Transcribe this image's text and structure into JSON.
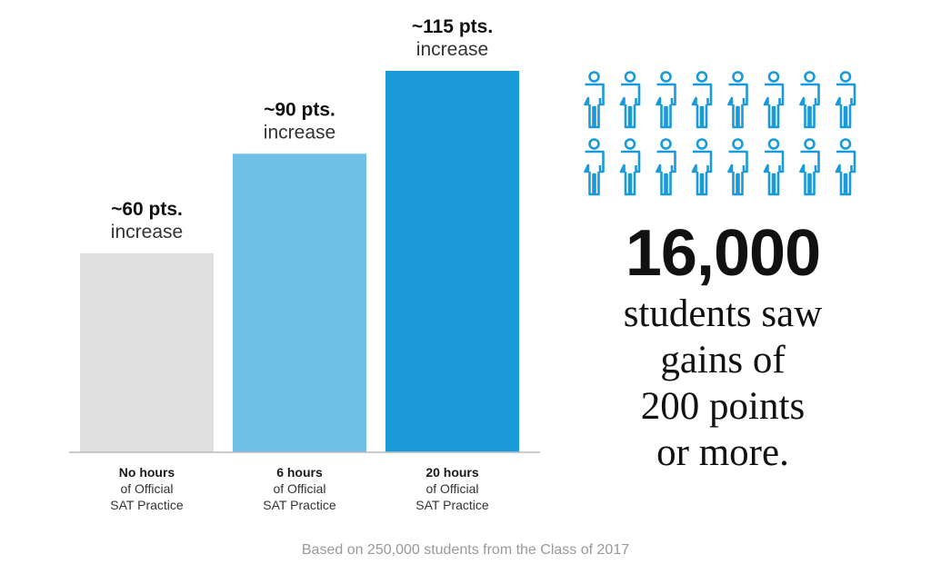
{
  "chart_data": {
    "type": "bar",
    "categories": [
      {
        "bold": "No hours",
        "line2": "of Official",
        "line3": "SAT Practice"
      },
      {
        "bold": "6 hours",
        "line2": "of Official",
        "line3": "SAT Practice"
      },
      {
        "bold": "20 hours",
        "line2": "of Official",
        "line3": "SAT Practice"
      }
    ],
    "values": [
      60,
      90,
      115
    ],
    "data_labels": [
      {
        "bold": "~60 pts.",
        "light": "increase"
      },
      {
        "bold": "~90 pts.",
        "light": "increase"
      },
      {
        "bold": "~115 pts.",
        "light": "increase"
      }
    ],
    "colors": [
      "#e0e0e0",
      "#6fbfe6",
      "#1a9ad8"
    ],
    "ylim": [
      0,
      115
    ],
    "title": "",
    "xlabel": "",
    "ylabel": "",
    "grid": false
  },
  "stat": {
    "number": "16,000",
    "lines": [
      "students saw",
      "gains of",
      "200 points",
      "or more."
    ],
    "icon": "person-outline-icon",
    "icon_color": "#1a9ad8",
    "icon_rows": 2,
    "icon_cols": 8
  },
  "footnote": "Based on 250,000 students from the Class of 2017"
}
